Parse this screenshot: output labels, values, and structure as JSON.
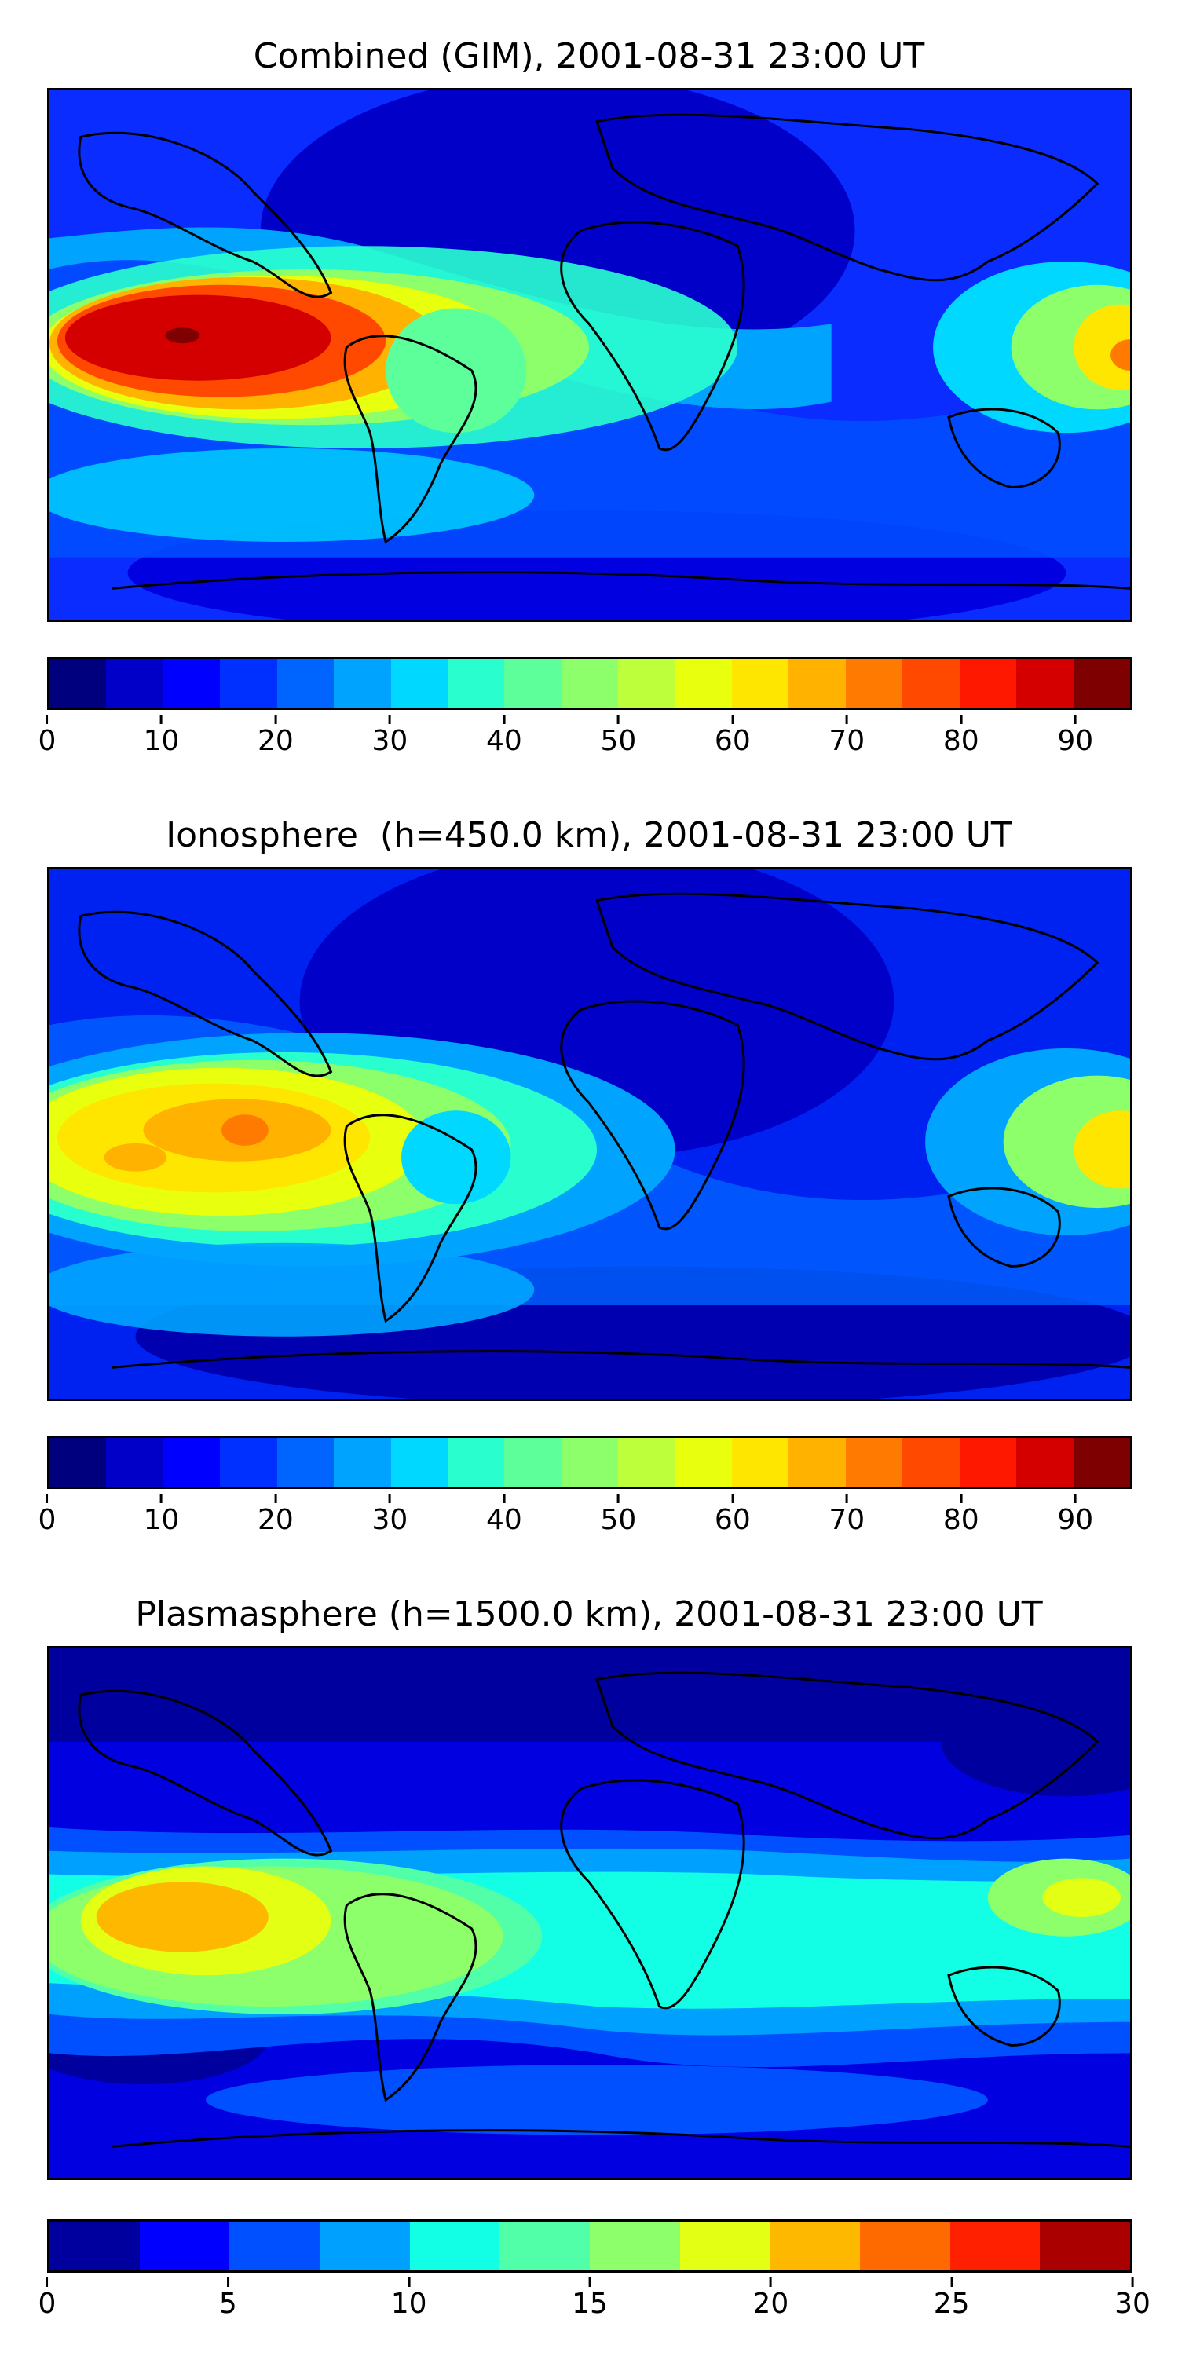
{
  "panels": [
    {
      "title": "Combined (GIM), 2001-08-31 23:00 UT",
      "bg": "#0a2cff",
      "colorbar": {
        "colors": [
          "#00007f",
          "#0000c8",
          "#0000ff",
          "#0030ff",
          "#0064ff",
          "#00a4ff",
          "#00d8ff",
          "#29ffce",
          "#5cff9a",
          "#8cff6a",
          "#bcff3a",
          "#e8ff0e",
          "#ffe600",
          "#ffb200",
          "#ff7a00",
          "#ff4800",
          "#ff1800",
          "#d40000",
          "#7f0000"
        ],
        "ticks": [
          "0",
          "10",
          "20",
          "30",
          "40",
          "50",
          "60",
          "70",
          "80",
          "90"
        ],
        "tick_values": [
          0,
          10,
          20,
          30,
          40,
          50,
          60,
          70,
          80,
          90
        ],
        "vmin": 0,
        "vmax": 95
      }
    },
    {
      "title": "Ionosphere  (h=450.0 km), 2001-08-31 23:00 UT",
      "bg": "#0022f0",
      "colorbar": {
        "colors": [
          "#00007f",
          "#0000c8",
          "#0000ff",
          "#0030ff",
          "#0064ff",
          "#00a4ff",
          "#00d8ff",
          "#29ffce",
          "#5cff9a",
          "#8cff6a",
          "#bcff3a",
          "#e8ff0e",
          "#ffe600",
          "#ffb200",
          "#ff7a00",
          "#ff4800",
          "#ff1800",
          "#d40000",
          "#7f0000"
        ],
        "ticks": [
          "0",
          "10",
          "20",
          "30",
          "40",
          "50",
          "60",
          "70",
          "80",
          "90"
        ],
        "tick_values": [
          0,
          10,
          20,
          30,
          40,
          50,
          60,
          70,
          80,
          90
        ],
        "vmin": 0,
        "vmax": 95
      }
    },
    {
      "title": "Plasmasphere (h=1500.0 km), 2001-08-31 23:00 UT",
      "bg": "#0000e0",
      "colorbar": {
        "colors": [
          "#00009f",
          "#0000ff",
          "#0050ff",
          "#00a0ff",
          "#13ffe5",
          "#50ffa8",
          "#8cff6a",
          "#e2ff14",
          "#ffb800",
          "#ff6a00",
          "#ff2000",
          "#aa0000"
        ],
        "ticks": [
          "0",
          "5",
          "10",
          "15",
          "20",
          "25",
          "30"
        ],
        "tick_values": [
          0,
          5,
          10,
          15,
          20,
          25,
          30
        ],
        "vmin": 0,
        "vmax": 30
      }
    }
  ]
}
